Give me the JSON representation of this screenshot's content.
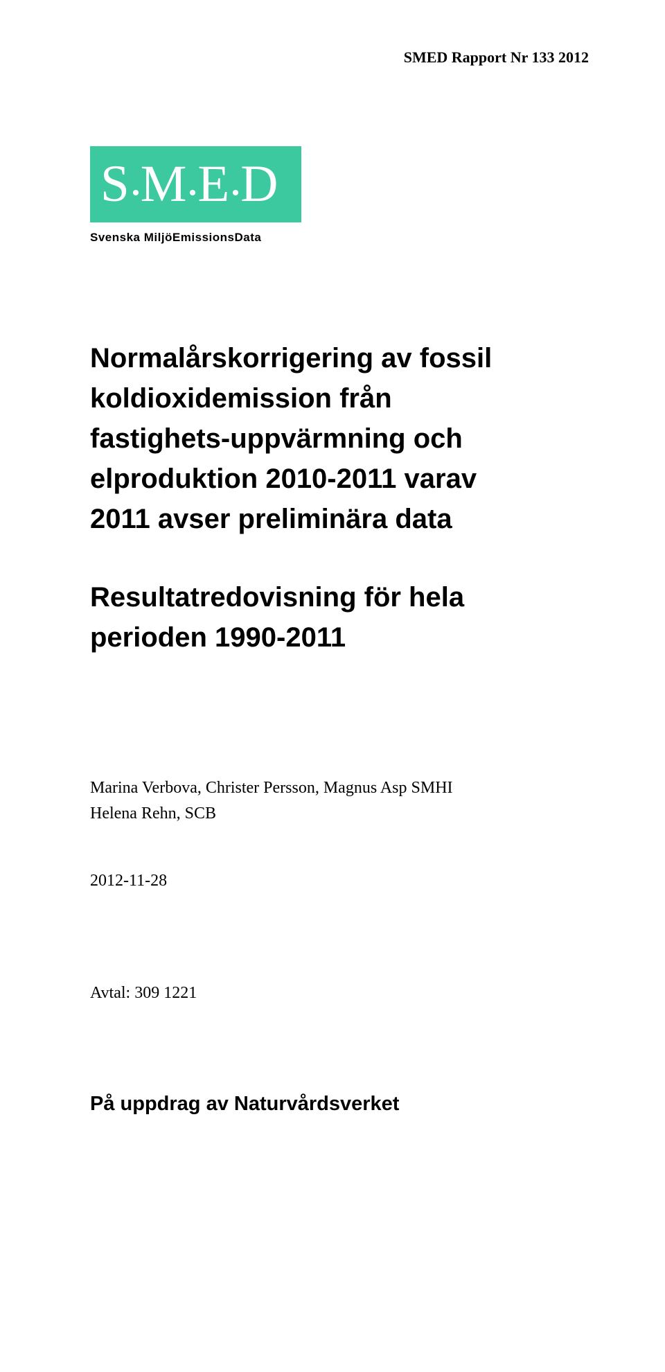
{
  "header": {
    "text": "SMED Rapport Nr 133  2012"
  },
  "logo": {
    "letters": [
      "S",
      "M",
      "E",
      "D"
    ],
    "subtitle": "Svenska MiljöEmissionsData",
    "background_color": "#3cc9a0",
    "text_color": "#ffffff"
  },
  "title": {
    "line1": "Normalårskorrigering av fossil",
    "line2": "koldioxidemission från",
    "line3": "fastighets-uppvärmning och",
    "line4": "elproduktion 2010-2011 varav",
    "line5": "2011 avser preliminära data",
    "subtitle_line1": "Resultatredovisning för hela",
    "subtitle_line2": "perioden 1990-2011"
  },
  "authors": {
    "line1": "Marina Verbova, Christer Persson, Magnus Asp SMHI",
    "line2": "Helena Rehn, SCB"
  },
  "date": "2012-11-28",
  "avtal": "Avtal: 309 1221",
  "footer": "På uppdrag av Naturvårdsverket"
}
